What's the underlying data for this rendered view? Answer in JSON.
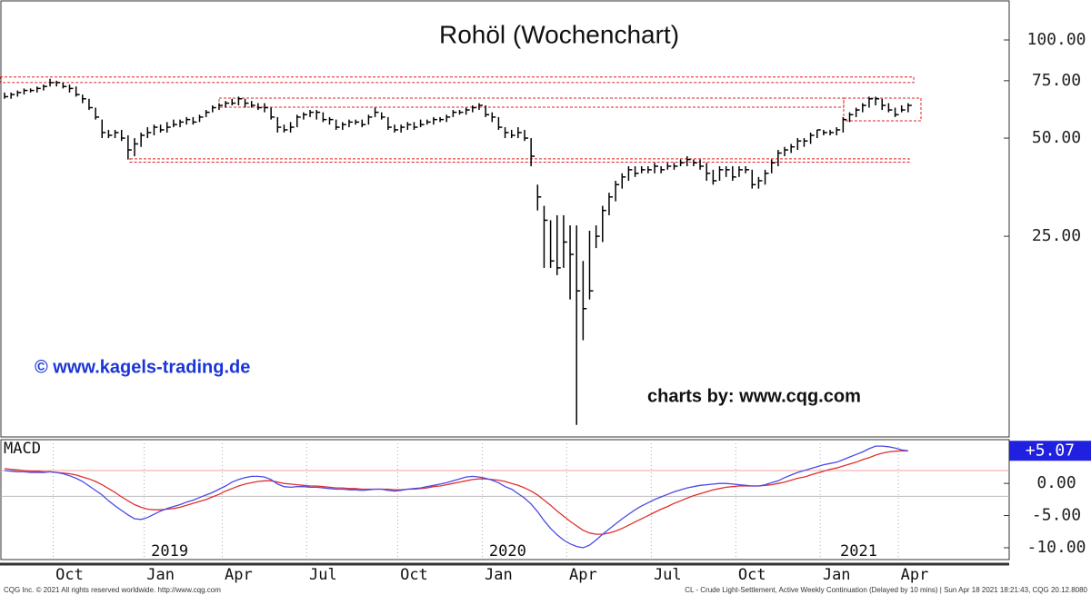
{
  "chart_data": {
    "type": "ohlc",
    "title": "Rohöl (Wochenchart)",
    "website": "© www.kagels-trading.de",
    "credit": "charts by: www.cqg.com",
    "footer_left": "CQG Inc. © 2021 All rights reserved worldwide. http://www.cqg.com",
    "footer_right": "CL - Crude Light-Settlement, Active Weekly Continuation (Delayed by 10 mins) | Sun Apr 18 2021 18:21:43, CQG 20.12.8080",
    "log_scale": true,
    "color": "#000000",
    "categories": [
      null,
      null,
      null,
      null,
      null,
      null,
      null,
      null,
      null,
      null,
      "Oct",
      null,
      null,
      null,
      null,
      null,
      null,
      null,
      null,
      null,
      null,
      null,
      null,
      null,
      "Jan",
      null,
      null,
      null,
      null,
      null,
      null,
      null,
      null,
      null,
      null,
      null,
      "Apr",
      null,
      null,
      null,
      null,
      null,
      null,
      null,
      null,
      null,
      null,
      null,
      null,
      "Jul",
      null,
      null,
      null,
      null,
      null,
      null,
      null,
      null,
      null,
      null,
      null,
      null,
      null,
      "Oct",
      null,
      null,
      null,
      null,
      null,
      null,
      null,
      null,
      null,
      null,
      null,
      null,
      "Jan",
      null,
      null,
      null,
      null,
      null,
      null,
      null,
      null,
      null,
      null,
      null,
      null,
      "Apr",
      null,
      null,
      null,
      null,
      null,
      null,
      null,
      null,
      null,
      null,
      null,
      null,
      "Jul",
      null,
      null,
      null,
      null,
      null,
      null,
      null,
      null,
      null,
      null,
      null,
      null,
      "Oct",
      null,
      null,
      null,
      null,
      null,
      null,
      null,
      null,
      null,
      null,
      null,
      null,
      "Jan",
      null,
      null,
      null,
      null,
      null,
      null,
      null,
      null,
      null,
      null,
      null,
      "Apr"
    ],
    "year_labels": [
      null,
      null,
      null,
      null,
      null,
      null,
      null,
      null,
      null,
      null,
      null,
      null,
      null,
      null,
      null,
      null,
      null,
      null,
      null,
      null,
      null,
      null,
      null,
      null,
      "2019",
      null,
      null,
      null,
      null,
      null,
      null,
      null,
      null,
      null,
      null,
      null,
      null,
      null,
      null,
      null,
      null,
      null,
      null,
      null,
      null,
      null,
      null,
      null,
      null,
      null,
      null,
      null,
      null,
      null,
      null,
      null,
      null,
      null,
      null,
      null,
      null,
      null,
      null,
      null,
      null,
      null,
      null,
      null,
      null,
      null,
      null,
      null,
      null,
      null,
      null,
      null,
      "2020",
      null,
      null,
      null,
      null,
      null,
      null,
      null,
      null,
      null,
      null,
      null,
      null,
      null,
      null,
      null,
      null,
      null,
      null,
      null,
      null,
      null,
      null,
      null,
      null,
      null,
      null,
      null,
      null,
      null,
      null,
      null,
      null,
      null,
      null,
      null,
      null,
      null,
      null,
      null,
      null,
      null,
      null,
      null,
      null,
      null,
      null,
      null,
      null,
      null,
      null,
      null,
      null,
      null,
      "2021",
      null,
      null,
      null,
      null,
      null,
      null,
      null,
      null,
      null,
      null,
      null,
      null
    ],
    "high": [
      69,
      69,
      70,
      71,
      71,
      72,
      73,
      76,
      75,
      74,
      73,
      72,
      68,
      66,
      62,
      57,
      53,
      53,
      53,
      51,
      50,
      52,
      54,
      55,
      55,
      56,
      57,
      57,
      58,
      58,
      59,
      61,
      63,
      64,
      65,
      66,
      67,
      66,
      65,
      64,
      64,
      62,
      58,
      55,
      56,
      59,
      60,
      61,
      61,
      60,
      58,
      57,
      56,
      57,
      57,
      57,
      59,
      62,
      60,
      58,
      55,
      55,
      56,
      56,
      57,
      57,
      58,
      58,
      59,
      61,
      61,
      62,
      63,
      64,
      63,
      60,
      58,
      54,
      53,
      54,
      53,
      50,
      36,
      31,
      28,
      29,
      29,
      27,
      27,
      21,
      26,
      27,
      31,
      34,
      37,
      39,
      41,
      41,
      41,
      41,
      42,
      41,
      42,
      42,
      43,
      44,
      43,
      43,
      42,
      40,
      41,
      41,
      41,
      41,
      41,
      40,
      38,
      40,
      43,
      46,
      47,
      48,
      50,
      50,
      52,
      53,
      53,
      53,
      54,
      58,
      60,
      62,
      64,
      67,
      67,
      66,
      64,
      62,
      63,
      64,
      null
    ],
    "low": [
      66,
      66,
      67,
      68,
      69,
      69,
      70,
      72,
      72,
      71,
      69,
      67,
      64,
      61,
      57,
      50,
      50,
      50,
      49,
      43,
      44,
      47,
      50,
      51,
      52,
      52,
      54,
      54,
      55,
      55,
      56,
      58,
      60,
      61,
      62,
      63,
      63,
      62,
      62,
      61,
      60,
      57,
      52,
      52,
      52,
      54,
      57,
      58,
      57,
      56,
      55,
      53,
      53,
      54,
      55,
      54,
      55,
      58,
      57,
      53,
      52,
      52,
      53,
      53,
      54,
      55,
      55,
      56,
      56,
      58,
      59,
      59,
      60,
      61,
      58,
      56,
      53,
      50,
      50,
      50,
      49,
      41,
      30,
      20,
      20,
      19,
      20,
      16,
      6.6,
      12,
      16,
      23,
      24,
      29,
      32,
      35,
      37,
      38,
      39,
      39,
      39,
      39,
      40,
      40,
      41,
      41,
      41,
      40,
      37,
      36,
      37,
      38,
      37,
      38,
      39,
      35,
      35,
      36,
      39,
      41,
      44,
      45,
      46,
      47,
      48,
      50,
      51,
      51,
      51,
      52,
      56,
      58,
      60,
      62,
      63,
      61,
      60,
      58,
      60,
      60,
      null
    ],
    "close": [
      67,
      68,
      69,
      70,
      70,
      71,
      72,
      74,
      74,
      72,
      71,
      68,
      66,
      62,
      58,
      52,
      51,
      52,
      50,
      46,
      48,
      51,
      52,
      54,
      53,
      54,
      55,
      56,
      57,
      56,
      58,
      60,
      62,
      63,
      64,
      64,
      66,
      64,
      63,
      62,
      62,
      58,
      54,
      53,
      54,
      58,
      59,
      60,
      60,
      57,
      57,
      54,
      55,
      56,
      56,
      55,
      58,
      60,
      58,
      54,
      53,
      54,
      55,
      54,
      55,
      56,
      57,
      57,
      58,
      60,
      60,
      61,
      62,
      63,
      59,
      58,
      54,
      52,
      51,
      52,
      50,
      44,
      33,
      28,
      21,
      20,
      24,
      22,
      17,
      15,
      17,
      25,
      30,
      33,
      36,
      38,
      40,
      39,
      40,
      40,
      41,
      40,
      41,
      41,
      42,
      43,
      42,
      41,
      39,
      37,
      40,
      40,
      38,
      40,
      40,
      36,
      37,
      39,
      42,
      45,
      46,
      47,
      49,
      49,
      51,
      53,
      52,
      52,
      53,
      57,
      59,
      61,
      63,
      66,
      66,
      63,
      61,
      59,
      61,
      63,
      null
    ],
    "ylim": [
      6.1,
      132.6
    ],
    "yticks": [
      {
        "value": 100,
        "label": "100.00"
      },
      {
        "value": 75,
        "label": "75.00"
      },
      {
        "value": 50,
        "label": "50.00"
      },
      {
        "value": 25,
        "label": "25.00"
      }
    ],
    "zone_color": "#e02020",
    "zones": [
      {
        "high": 77,
        "low": 74
      },
      {
        "high": 66.3,
        "low": 62.2
      },
      {
        "high": 66.3,
        "low": 56.5
      },
      {
        "high": 43.2,
        "low": 42.2
      }
    ],
    "macd": {
      "title": "MACD",
      "ylim": [
        -11.7,
        6.8
      ],
      "yticks": [
        {
          "value": 0,
          "label": "0.00"
        },
        {
          "value": -5,
          "label": "-5.00"
        },
        {
          "value": -10,
          "label": "-10.00"
        }
      ],
      "levels": [
        2,
        -2
      ],
      "series": [
        {
          "name": "MACD",
          "color": "#4a4ae6",
          "values": [
            2.0,
            1.9,
            1.8,
            1.8,
            1.7,
            1.7,
            1.7,
            1.8,
            1.7,
            1.5,
            1.2,
            0.8,
            0.3,
            -0.4,
            -1.1,
            -1.8,
            -2.7,
            -3.5,
            -4.2,
            -4.9,
            -5.5,
            -5.6,
            -5.3,
            -4.8,
            -4.3,
            -3.9,
            -3.6,
            -3.3,
            -2.9,
            -2.6,
            -2.2,
            -1.8,
            -1.4,
            -0.9,
            -0.4,
            0.2,
            0.6,
            0.9,
            1.1,
            1.1,
            1.0,
            0.6,
            -0.1,
            -0.5,
            -0.6,
            -0.5,
            -0.5,
            -0.6,
            -0.6,
            -0.7,
            -0.8,
            -0.9,
            -0.9,
            -1.0,
            -1.0,
            -1.1,
            -1.0,
            -0.9,
            -0.9,
            -1.1,
            -1.2,
            -1.1,
            -0.9,
            -0.8,
            -0.7,
            -0.5,
            -0.3,
            -0.1,
            0.1,
            0.4,
            0.7,
            1.0,
            1.1,
            1.0,
            0.8,
            0.5,
            0.1,
            -0.5,
            -0.9,
            -1.6,
            -2.3,
            -3.2,
            -4.4,
            -5.8,
            -7.0,
            -8.0,
            -8.8,
            -9.4,
            -9.8,
            -10.0,
            -9.6,
            -8.8,
            -7.9,
            -7.1,
            -6.3,
            -5.5,
            -4.8,
            -4.1,
            -3.5,
            -3.0,
            -2.5,
            -2.1,
            -1.7,
            -1.3,
            -1.0,
            -0.7,
            -0.5,
            -0.3,
            -0.2,
            -0.1,
            0.0,
            0.0,
            -0.1,
            -0.2,
            -0.3,
            -0.4,
            -0.4,
            -0.2,
            0.1,
            0.4,
            0.9,
            1.3,
            1.7,
            2.0,
            2.3,
            2.6,
            2.9,
            3.1,
            3.3,
            3.7,
            4.1,
            4.5,
            4.9,
            5.4,
            5.8,
            5.8,
            5.7,
            5.5,
            5.2,
            5.07,
            null
          ],
          "value_labels": [
            null,
            null,
            null,
            null,
            null,
            null,
            null,
            null,
            null,
            null,
            null,
            null,
            null,
            null,
            null,
            null,
            null,
            null,
            null,
            null,
            null,
            null,
            null,
            null,
            null,
            null,
            null,
            null,
            null,
            null,
            null,
            null,
            null,
            null,
            null,
            null,
            null,
            null,
            null,
            null,
            null,
            null,
            null,
            null,
            null,
            null,
            null,
            null,
            null,
            null,
            null,
            null,
            null,
            null,
            null,
            null,
            null,
            null,
            null,
            null,
            null,
            null,
            null,
            null,
            null,
            null,
            null,
            null,
            null,
            null,
            null,
            null,
            null,
            null,
            null,
            null,
            null,
            null,
            null,
            null,
            null,
            null,
            null,
            null,
            null,
            null,
            null,
            null,
            null,
            null,
            null,
            null,
            null,
            null,
            null,
            null,
            null,
            null,
            null,
            null,
            null,
            null,
            null,
            null,
            null,
            null,
            null,
            null,
            null,
            null,
            null,
            null,
            null,
            null,
            null,
            null,
            null,
            null,
            null,
            null,
            null,
            null,
            null,
            null,
            null,
            null,
            null,
            null,
            null,
            null,
            null,
            null,
            null,
            null,
            null,
            null,
            null,
            null,
            null,
            "+5.07",
            null
          ]
        },
        {
          "color": "#e03030",
          "values": [
            2.3,
            2.2,
            2.1,
            2.0,
            1.9,
            1.9,
            1.8,
            1.8,
            1.7,
            1.6,
            1.5,
            1.3,
            1.0,
            0.7,
            0.3,
            -0.2,
            -0.8,
            -1.4,
            -2.1,
            -2.7,
            -3.3,
            -3.7,
            -4.0,
            -4.1,
            -4.1,
            -4.0,
            -3.9,
            -3.7,
            -3.4,
            -3.1,
            -2.8,
            -2.5,
            -2.1,
            -1.7,
            -1.2,
            -0.8,
            -0.4,
            -0.1,
            0.1,
            0.3,
            0.4,
            0.4,
            0.2,
            0.0,
            -0.1,
            -0.2,
            -0.3,
            -0.4,
            -0.4,
            -0.5,
            -0.6,
            -0.7,
            -0.7,
            -0.8,
            -0.8,
            -0.9,
            -0.9,
            -0.9,
            -0.9,
            -0.9,
            -1.0,
            -1.0,
            -0.9,
            -0.9,
            -0.8,
            -0.7,
            -0.5,
            -0.4,
            -0.2,
            0.0,
            0.2,
            0.4,
            0.6,
            0.7,
            0.7,
            0.6,
            0.5,
            0.3,
            0.0,
            -0.3,
            -0.7,
            -1.2,
            -1.8,
            -2.6,
            -3.4,
            -4.3,
            -5.1,
            -5.9,
            -6.6,
            -7.3,
            -7.7,
            -7.9,
            -7.9,
            -7.7,
            -7.4,
            -7.0,
            -6.5,
            -6.0,
            -5.5,
            -5.0,
            -4.5,
            -4.0,
            -3.6,
            -3.1,
            -2.7,
            -2.3,
            -1.9,
            -1.6,
            -1.3,
            -1.0,
            -0.8,
            -0.6,
            -0.5,
            -0.4,
            -0.4,
            -0.4,
            -0.4,
            -0.3,
            -0.2,
            0.0,
            0.2,
            0.5,
            0.8,
            1.0,
            1.3,
            1.6,
            1.9,
            2.2,
            2.4,
            2.7,
            3.0,
            3.3,
            3.7,
            4.0,
            4.4,
            4.7,
            4.9,
            5.0,
            5.07,
            5.07,
            null
          ]
        }
      ]
    }
  }
}
